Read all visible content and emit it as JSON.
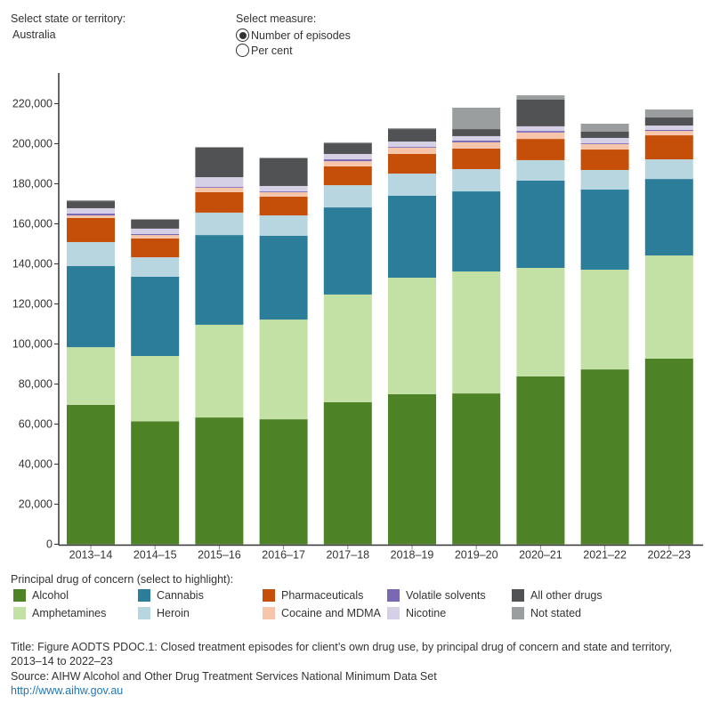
{
  "controls": {
    "state_label": "Select state or territory:",
    "state_value": "Australia",
    "measure_label": "Select measure:",
    "measure_options": [
      {
        "label": "Number of episodes",
        "selected": true
      },
      {
        "label": "Per cent",
        "selected": false
      }
    ]
  },
  "legend": {
    "title": "Principal drug of concern (select to highlight):"
  },
  "footer": {
    "title_line1": "Title: Figure AODTS PDOC.1: Closed treatment episodes for client’s own drug use, by principal drug of concern and state and territory,",
    "title_line2": "2013–14 to 2022–23",
    "source": "Source: AIHW Alcohol and Other Drug Treatment Services National Minimum Data Set",
    "link": "http://www.aihw.gov.au"
  },
  "chart_data": {
    "type": "bar",
    "stacked": true,
    "categories": [
      "2013–14",
      "2014–15",
      "2015–16",
      "2016–17",
      "2017–18",
      "2018–19",
      "2019–20",
      "2020–21",
      "2021–22",
      "2022–23"
    ],
    "ylim": [
      0,
      230000
    ],
    "yticks": [
      0,
      20000,
      40000,
      60000,
      80000,
      100000,
      120000,
      140000,
      160000,
      180000,
      200000,
      220000
    ],
    "ytick_labels": [
      "0",
      "20,000",
      "40,000",
      "60,000",
      "80,000",
      "100,000",
      "120,000",
      "140,000",
      "160,000",
      "180,000",
      "200,000",
      "220,000"
    ],
    "grid": false,
    "legend_position": "bottom",
    "series": [
      {
        "name": "Alcohol",
        "color": "#4e8227",
        "values": [
          69600,
          61400,
          63300,
          62400,
          70900,
          74900,
          75300,
          83800,
          87300,
          92700
        ]
      },
      {
        "name": "Amphetamines",
        "color": "#c3e1a5",
        "values": [
          28800,
          32600,
          46300,
          49800,
          53800,
          58200,
          60900,
          54200,
          49800,
          51500
        ]
      },
      {
        "name": "Cannabis",
        "color": "#2c7d99",
        "values": [
          40500,
          39600,
          44800,
          41800,
          43500,
          40900,
          40000,
          43600,
          40000,
          38200
        ]
      },
      {
        "name": "Heroin",
        "color": "#b8d6e0",
        "values": [
          12000,
          9700,
          11200,
          10200,
          11100,
          11100,
          11100,
          10200,
          9800,
          9800
        ]
      },
      {
        "name": "Pharmaceuticals",
        "color": "#c54f09",
        "values": [
          12000,
          9400,
          10200,
          9400,
          9400,
          9800,
          10300,
          10600,
          10200,
          12000
        ]
      },
      {
        "name": "Cocaine and MDMA",
        "color": "#f7c6aa",
        "values": [
          1300,
          1700,
          2200,
          2200,
          2600,
          3100,
          3100,
          3200,
          2700,
          2200
        ]
      },
      {
        "name": "Volatile solvents",
        "color": "#7b68b5",
        "values": [
          900,
          500,
          400,
          400,
          900,
          400,
          900,
          800,
          400,
          500
        ]
      },
      {
        "name": "Nicotine",
        "color": "#d5d0e6",
        "values": [
          2700,
          2700,
          4900,
          2700,
          2700,
          2700,
          2200,
          2300,
          2700,
          2200
        ]
      },
      {
        "name": "All other drugs",
        "color": "#515254",
        "values": [
          3500,
          4500,
          14700,
          13800,
          5300,
          6200,
          3500,
          13300,
          3100,
          4000
        ]
      },
      {
        "name": "Not stated",
        "color": "#9b9e9f",
        "values": [
          500,
          300,
          400,
          400,
          500,
          500,
          10700,
          2200,
          4000,
          4000
        ]
      }
    ]
  }
}
